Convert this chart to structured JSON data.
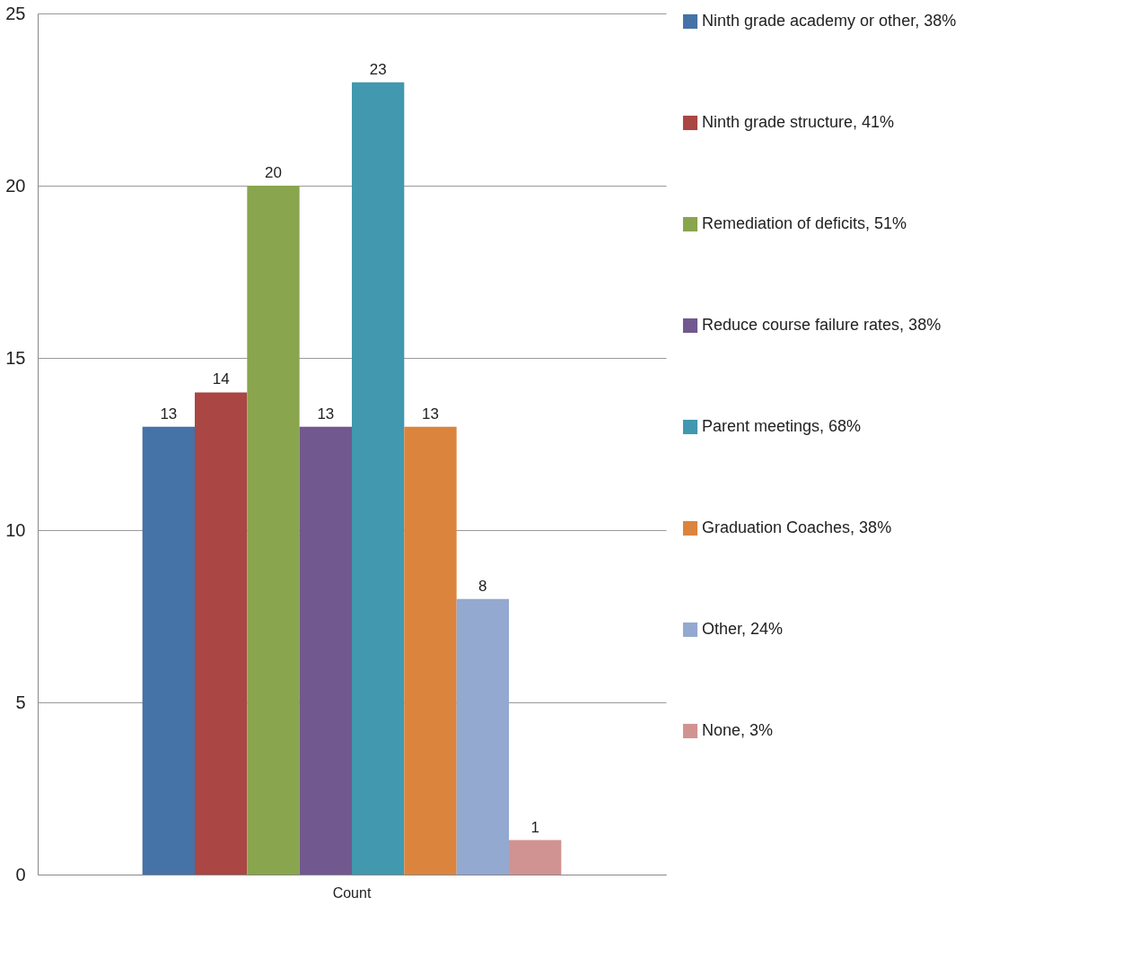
{
  "chart_data": {
    "type": "bar",
    "categories": [
      "Count"
    ],
    "series": [
      {
        "name": "Ninth grade academy or other, 38%",
        "color": "#4572a7",
        "values": [
          13
        ]
      },
      {
        "name": "Ninth grade structure, 41%",
        "color": "#aa4643",
        "values": [
          14
        ]
      },
      {
        "name": "Remediation of deficits, 51%",
        "color": "#89a54e",
        "values": [
          20
        ]
      },
      {
        "name": "Reduce course failure rates, 38%",
        "color": "#71588f",
        "values": [
          13
        ]
      },
      {
        "name": "Parent meetings, 68%",
        "color": "#4198af",
        "values": [
          23
        ]
      },
      {
        "name": "Graduation Coaches, 38%",
        "color": "#db843d",
        "values": [
          13
        ]
      },
      {
        "name": "Other, 24%",
        "color": "#93a9cf",
        "values": [
          8
        ]
      },
      {
        "name": "None, 3%",
        "color": "#d19392",
        "values": [
          1
        ]
      }
    ],
    "ylim": [
      0,
      25
    ],
    "yticks": [
      0,
      5,
      10,
      15,
      20,
      25
    ],
    "grid": "y",
    "legend": "right",
    "data_labels": true
  }
}
